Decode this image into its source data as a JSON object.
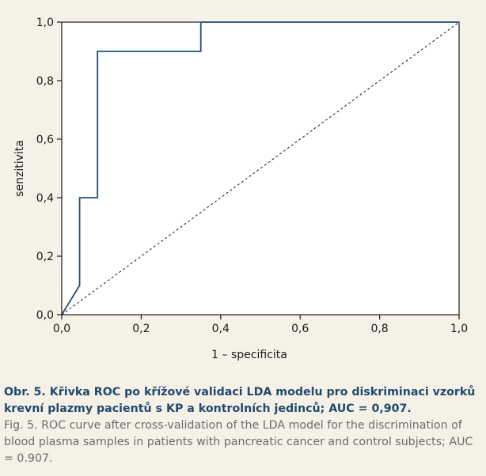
{
  "chart_data": {
    "type": "line",
    "xlabel": "1 – specificita",
    "ylabel": "senzitivita",
    "xlim": [
      0,
      1
    ],
    "ylim": [
      0,
      1
    ],
    "x_ticks": [
      "0,0",
      "0,2",
      "0,4",
      "0,6",
      "0,8",
      "1,0"
    ],
    "y_ticks": [
      "0,0",
      "0,2",
      "0,4",
      "0,6",
      "0,8",
      "1,0"
    ],
    "grid": false,
    "series": [
      {
        "style": "solid",
        "color": "#1f4e79",
        "x": [
          0,
          0.045,
          0.045,
          0.09,
          0.09,
          0.35,
          0.35,
          1.0
        ],
        "y": [
          0,
          0.1,
          0.4,
          0.4,
          0.9,
          0.9,
          1.0,
          1.0
        ]
      },
      {
        "style": "dashed",
        "color": "#1a1a1a",
        "x": [
          0,
          1
        ],
        "y": [
          0,
          1
        ]
      }
    ]
  },
  "caption": {
    "cz": "Obr. 5. Křivka ROC po křížové validaci LDA modelu pro diskriminaci vzorků krevní plazmy pacientů s KP a kontrolních jedinců; AUC = 0,907.",
    "en": "Fig. 5. ROC curve after cross-validation of the LDA model for the discrimination of blood plasma samples in patients with pancreatic cancer and control subjects; AUC = 0.907."
  },
  "colors": {
    "background": "#f6f1e7",
    "plot_background": "#ffffff",
    "curve": "#1f4e79",
    "caption_cz": "#204a6e"
  }
}
